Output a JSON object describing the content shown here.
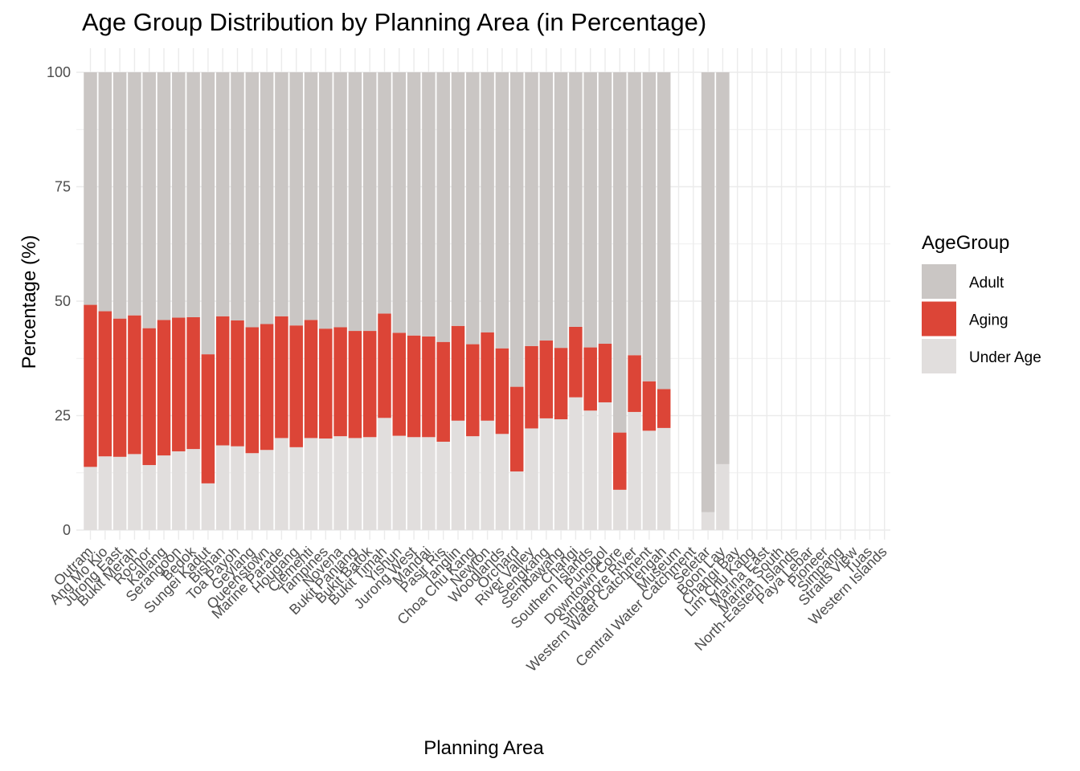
{
  "chart_data": {
    "type": "bar",
    "stacked": true,
    "title": "Age Group Distribution by Planning Area (in Percentage)",
    "xlabel": "Planning Area",
    "ylabel": "Percentage (%)",
    "ylim": [
      0,
      100
    ],
    "yticks": [
      0,
      25,
      50,
      75,
      100
    ],
    "grid": true,
    "legend_title": "AgeGroup",
    "legend_position": "right",
    "categories": [
      "Outram",
      "Ang Mo Kio",
      "Jurong East",
      "Bukit Merah",
      "Rochor",
      "Kallang",
      "Serangoon",
      "Bedok",
      "Sungei Kadut",
      "Bishan",
      "Toa Payoh",
      "Geylang",
      "Queenstown",
      "Marine Parade",
      "Hougang",
      "Clementi",
      "Tampines",
      "Novena",
      "Bukit Panjang",
      "Bukit Batok",
      "Bukit Timah",
      "Yishun",
      "Jurong West",
      "Mandai",
      "Pasir Ris",
      "Tanglin",
      "Choa Chu Kang",
      "Newton",
      "Woodlands",
      "Orchard",
      "River Valley",
      "Sengkang",
      "Sembawang",
      "Changi",
      "Southern Islands",
      "Punggol",
      "Downtown Core",
      "Singapore River",
      "Western Water Catchment",
      "Tengah",
      "Museum",
      "Central Water Catchment",
      "Seletar",
      "Boon Lay",
      "Changi Bay",
      "Lim Chu Kang",
      "Marina East",
      "Marina South",
      "North-Eastern Islands",
      "Paya Lebar",
      "Pioneer",
      "Simpang",
      "Straits View",
      "Tuas",
      "Western Islands"
    ],
    "series": [
      {
        "name": "Under Age",
        "color": "#e1dedd",
        "values": [
          13.8,
          16.1,
          16.0,
          16.6,
          14.2,
          16.3,
          17.2,
          17.7,
          10.2,
          18.5,
          18.3,
          16.8,
          17.5,
          20.1,
          18.1,
          20.1,
          20.0,
          20.5,
          20.1,
          20.3,
          24.5,
          20.6,
          20.3,
          20.3,
          19.3,
          23.9,
          20.5,
          23.9,
          21.0,
          12.8,
          22.2,
          24.4,
          24.2,
          29.0,
          26.1,
          27.9,
          8.8,
          25.8,
          21.7,
          22.3,
          0,
          0,
          3.9,
          14.4,
          0,
          0,
          0,
          0,
          0,
          0,
          0,
          0,
          0,
          0,
          0
        ]
      },
      {
        "name": "Aging",
        "color": "#dc4537",
        "values": [
          35.4,
          31.7,
          30.2,
          30.3,
          29.9,
          29.6,
          29.2,
          28.8,
          28.2,
          28.2,
          27.5,
          27.5,
          27.5,
          26.6,
          26.6,
          25.8,
          24.0,
          23.8,
          23.4,
          23.2,
          22.8,
          22.5,
          22.2,
          22.0,
          21.8,
          20.7,
          20.1,
          19.3,
          18.7,
          18.5,
          18.0,
          17.0,
          15.6,
          15.4,
          13.8,
          12.8,
          12.5,
          12.4,
          10.8,
          8.5,
          0,
          0,
          0,
          0,
          0,
          0,
          0,
          0,
          0,
          0,
          0,
          0,
          0,
          0,
          0
        ]
      },
      {
        "name": "Adult",
        "color": "#cac6c4",
        "values": [
          50.8,
          52.2,
          53.8,
          53.1,
          55.9,
          54.1,
          53.6,
          53.5,
          61.6,
          53.3,
          54.2,
          55.7,
          55.0,
          53.3,
          55.3,
          54.1,
          56.0,
          55.7,
          56.5,
          56.5,
          52.7,
          56.9,
          57.5,
          57.7,
          58.9,
          55.4,
          59.4,
          56.8,
          60.3,
          68.7,
          59.8,
          58.6,
          60.2,
          55.6,
          60.1,
          59.3,
          78.7,
          61.8,
          67.5,
          69.2,
          0,
          0,
          96.1,
          85.6,
          0,
          0,
          0,
          0,
          0,
          0,
          0,
          0,
          0,
          0,
          0
        ]
      }
    ]
  }
}
